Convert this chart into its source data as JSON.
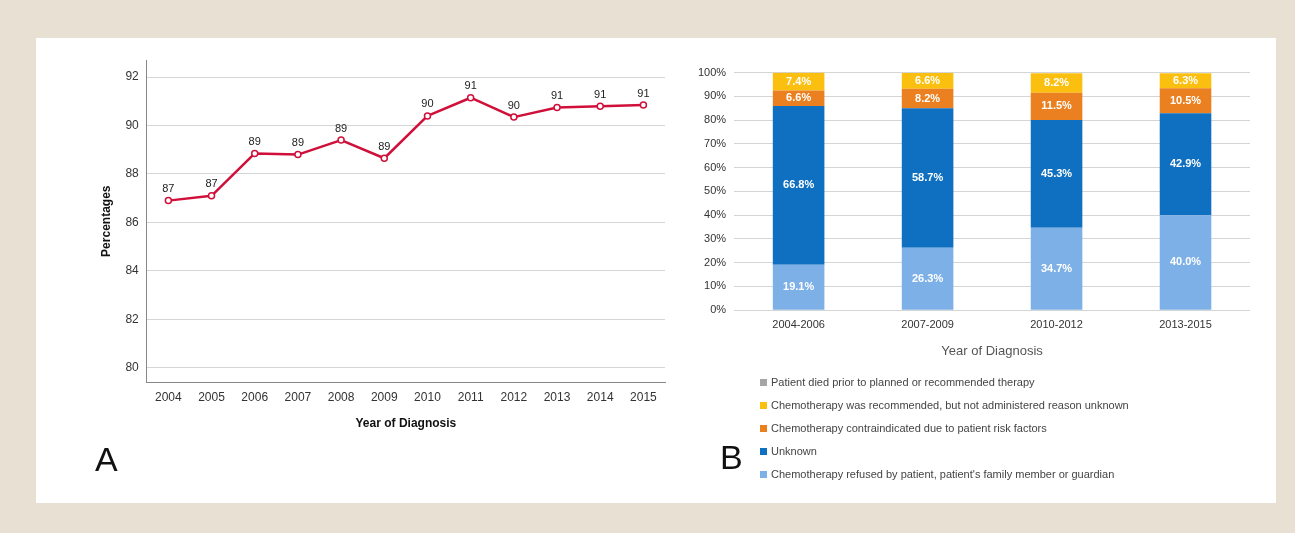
{
  "chart_data": [
    {
      "type": "line",
      "xlabel": "Year of Diagnosis",
      "ylabel": "Percentages",
      "annotations": [
        "A"
      ],
      "categories": [
        "2004",
        "2005",
        "2006",
        "2007",
        "2008",
        "2009",
        "2010",
        "2011",
        "2012",
        "2013",
        "2014",
        "2015"
      ],
      "series": [
        {
          "color": "#d0103a",
          "values": [
            86.9,
            87.1,
            88.85,
            88.8,
            89.4,
            88.65,
            90.4,
            91.15,
            90.35,
            90.75,
            90.8,
            90.85
          ],
          "value_labels": [
            "87",
            "87",
            "89",
            "89",
            "89",
            "89",
            "90",
            "91",
            "90",
            "91",
            "91",
            "91"
          ]
        }
      ],
      "ylim": [
        79.4,
        92.7
      ],
      "yticks": [
        80,
        82,
        84,
        86,
        88,
        90,
        92
      ],
      "grid": "y",
      "marker": "circle",
      "line_style": "solid",
      "legend": false
    },
    {
      "type": "bar",
      "stacked": true,
      "xlabel": "Year of Diagnosis",
      "annotations": [
        "B"
      ],
      "categories": [
        "2004-2006",
        "2007-2009",
        "2010-2012",
        "2013-2015"
      ],
      "series": [
        {
          "name": "Chemotherapy refused by patient, patient's family member or guardian",
          "color": "#7eb0e8",
          "values": [
            19.1,
            26.3,
            34.7,
            40.0
          ],
          "value_labels": [
            "19.1%",
            "26.3%",
            "34.7%",
            "40.0%"
          ]
        },
        {
          "name": "Unknown",
          "color": "#0f6fc0",
          "values": [
            66.8,
            58.7,
            45.3,
            42.9
          ],
          "value_labels": [
            "66.8%",
            "58.7%",
            "45.3%",
            "42.9%"
          ]
        },
        {
          "name": "Chemotherapy contraindicated due to patient risk factors",
          "color": "#ea8020",
          "values": [
            6.6,
            8.2,
            11.5,
            10.5
          ],
          "value_labels": [
            "6.6%",
            "8.2%",
            "11.5%",
            "10.5%"
          ]
        },
        {
          "name": "Chemotherapy was recommended, but not administered reason unknown",
          "color": "#fbbf10",
          "values": [
            7.4,
            6.6,
            8.2,
            6.3
          ],
          "value_labels": [
            "7.4%",
            "6.6%",
            "8.2%",
            "6.3%"
          ]
        },
        {
          "name": "Patient died prior to planned or recommended therapy",
          "color": "#a5a5a5",
          "values": [
            null,
            null,
            null,
            null
          ]
        }
      ],
      "ylim": [
        0,
        100
      ],
      "yticks": [
        {
          "value": 0,
          "label": "0%"
        },
        {
          "value": 10,
          "label": "10%"
        },
        {
          "value": 20,
          "label": "20%"
        },
        {
          "value": 30,
          "label": "30%"
        },
        {
          "value": 40,
          "label": "40%"
        },
        {
          "value": 50,
          "label": "50%"
        },
        {
          "value": 60,
          "label": "60%"
        },
        {
          "value": 70,
          "label": "70%"
        },
        {
          "value": 80,
          "label": "80%"
        },
        {
          "value": 90,
          "label": "90%"
        },
        {
          "value": 100,
          "label": "100%"
        }
      ],
      "grid": "y",
      "legend": "bottom"
    }
  ]
}
